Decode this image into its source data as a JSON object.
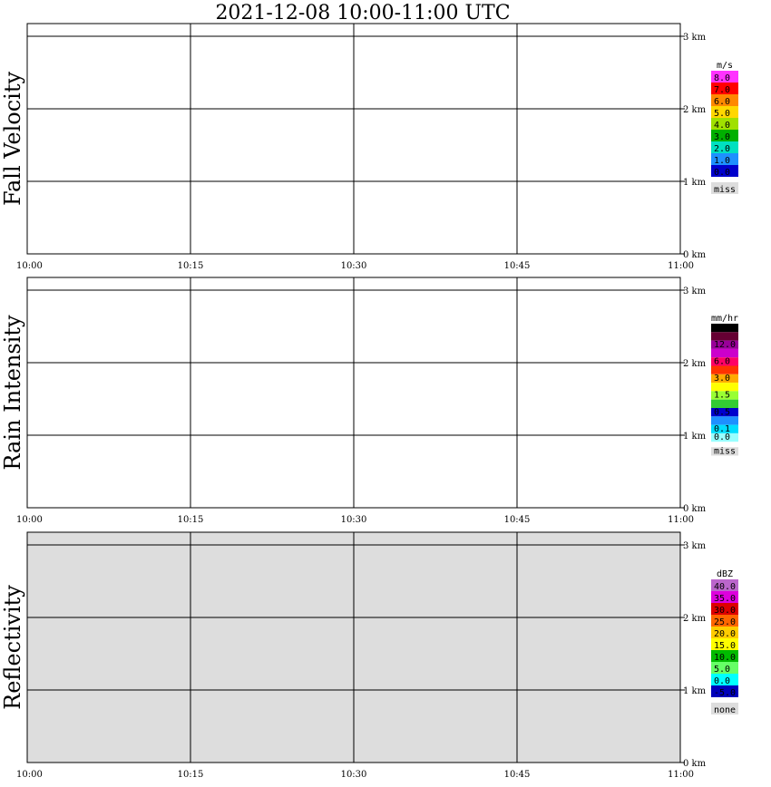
{
  "title": "2021-12-08   10:00-11:00 UTC",
  "chart_data": [
    {
      "type": "heatmap",
      "ylabel": "Fall Velocity",
      "x_ticks": [
        "10:00",
        "10:15",
        "10:30",
        "10:45",
        "11:00"
      ],
      "y_ticks": [
        "0 km",
        "1 km",
        "2 km",
        "3 km"
      ],
      "xlim": [
        0,
        60
      ],
      "ylim": [
        0,
        3.2
      ],
      "legend_unit": "m/s",
      "legend": [
        {
          "label": "8.0",
          "color": "#ff33ff"
        },
        {
          "label": "7.0",
          "color": "#ff0000"
        },
        {
          "label": "6.0",
          "color": "#ff8800"
        },
        {
          "label": "5.0",
          "color": "#ffd700"
        },
        {
          "label": "4.0",
          "color": "#a0e000"
        },
        {
          "label": "3.0",
          "color": "#00b000"
        },
        {
          "label": "2.0",
          "color": "#00e0c0"
        },
        {
          "label": "1.0",
          "color": "#1e90ff"
        },
        {
          "label": "0.0",
          "color": "#0000cc"
        },
        {
          "label": "miss",
          "color": "#dddddd"
        }
      ]
    },
    {
      "type": "heatmap",
      "ylabel": "Rain Intensity",
      "x_ticks": [
        "10:00",
        "10:15",
        "10:30",
        "10:45",
        "11:00"
      ],
      "y_ticks": [
        "0 km",
        "1 km",
        "2 km",
        "3 km"
      ],
      "xlim": [
        0,
        60
      ],
      "ylim": [
        0,
        3.2
      ],
      "legend_unit": "mm/hr",
      "legend": [
        {
          "label": "48.0",
          "color": "#000000"
        },
        {
          "label": "",
          "color": "#660033"
        },
        {
          "label": "12.0",
          "color": "#990099"
        },
        {
          "label": "",
          "color": "#cc00cc"
        },
        {
          "label": "6.0",
          "color": "#ff0066"
        },
        {
          "label": "",
          "color": "#ff3300"
        },
        {
          "label": "3.0",
          "color": "#ffaa00"
        },
        {
          "label": "",
          "color": "#ffff00"
        },
        {
          "label": "1.5",
          "color": "#99ff33"
        },
        {
          "label": "",
          "color": "#33cc33"
        },
        {
          "label": "0.5",
          "color": "#0000cc"
        },
        {
          "label": "",
          "color": "#1e90ff"
        },
        {
          "label": "0.1",
          "color": "#00ddff"
        },
        {
          "label": "0.0",
          "color": "#99ffff"
        },
        {
          "label": "miss",
          "color": "#dddddd"
        }
      ]
    },
    {
      "type": "heatmap",
      "ylabel": "Reflectivity",
      "x_ticks": [
        "10:00",
        "10:15",
        "10:30",
        "10:45",
        "11:00"
      ],
      "y_ticks": [
        "0 km",
        "1 km",
        "2 km",
        "3 km"
      ],
      "xlim": [
        0,
        60
      ],
      "ylim": [
        0,
        3.2
      ],
      "legend_unit": "dBZ",
      "legend": [
        {
          "label": "40.0",
          "color": "#bb66cc"
        },
        {
          "label": "35.0",
          "color": "#dd00dd"
        },
        {
          "label": "30.0",
          "color": "#dd0000"
        },
        {
          "label": "25.0",
          "color": "#ff6600"
        },
        {
          "label": "20.0",
          "color": "#ffcc00"
        },
        {
          "label": "15.0",
          "color": "#ffff00"
        },
        {
          "label": "10.0",
          "color": "#00bb00"
        },
        {
          "label": "5.0",
          "color": "#66ff66"
        },
        {
          "label": "0.0",
          "color": "#00ffff"
        },
        {
          "label": "-5.0",
          "color": "#0000bb"
        },
        {
          "label": "none",
          "color": "#dddddd"
        }
      ]
    }
  ]
}
